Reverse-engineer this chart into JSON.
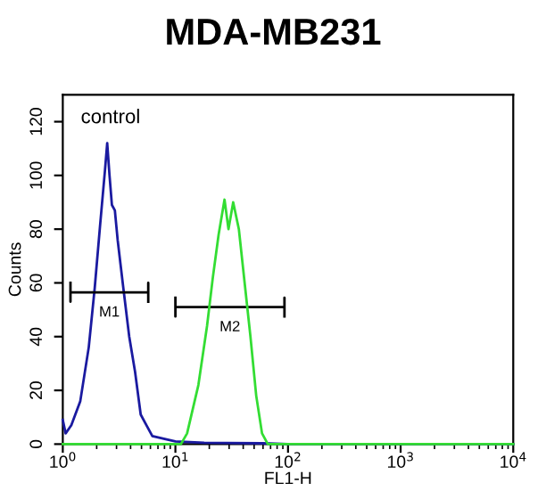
{
  "chart_data": {
    "type": "line",
    "title": "MDA-MB231",
    "xlabel": "FL1-H",
    "ylabel": "Counts",
    "log": "x",
    "xlim": [
      1,
      10000
    ],
    "xticks": [
      {
        "value": 1,
        "label": "10$^{0}$"
      },
      {
        "value": 10,
        "label": "10$^{1}$"
      },
      {
        "value": 100,
        "label": "10$^{2}$"
      },
      {
        "value": 1000,
        "label": "10$^{3}$"
      },
      {
        "value": 10000,
        "label": "10$^{4}$"
      }
    ],
    "ylim": [
      0,
      130
    ],
    "yticks": [
      0,
      20,
      40,
      60,
      80,
      100,
      120
    ],
    "grid": false,
    "legend": false,
    "series": [
      {
        "color": "#1a1aa0",
        "x": [
          1.0,
          1.06,
          1.19,
          1.43,
          1.7,
          1.92,
          2.15,
          2.37,
          2.48,
          2.6,
          2.73,
          2.9,
          3.07,
          3.45,
          3.89,
          4.38,
          4.92,
          5.54,
          6.24,
          7.89,
          10,
          18,
          60,
          100,
          10000
        ],
        "values": [
          9,
          4,
          7,
          16,
          36,
          58,
          82,
          102,
          112,
          100,
          89,
          87,
          76,
          58,
          40,
          27,
          11,
          7,
          3,
          2,
          1,
          0.5,
          0.3,
          0,
          0
        ]
      },
      {
        "color": "#000000",
        "x": [
          1.17,
          1.17,
          1.17,
          5.74,
          5.74,
          5.74
        ],
        "values": [
          60,
          53,
          56.5,
          56.5,
          60,
          53
        ]
      },
      {
        "color": "#000000",
        "x": [
          10,
          10,
          10,
          93,
          93,
          93
        ],
        "values": [
          54.5,
          47.5,
          51,
          51,
          54.5,
          47.5
        ]
      },
      {
        "color": "#33dd33",
        "x": [
          1,
          5,
          11.2,
          12.7,
          16.0,
          19.1,
          21.5,
          24.2,
          27.3,
          29.6,
          32.6,
          36.6,
          41.2,
          46.4,
          52.2,
          58.8,
          66.2,
          100,
          1000,
          10000
        ],
        "values": [
          0,
          0,
          0,
          4,
          22,
          44,
          62,
          78,
          91,
          80,
          90,
          80,
          60,
          40,
          18,
          4,
          0,
          0,
          0,
          0
        ]
      }
    ],
    "annotations": [
      "control",
      "M1",
      "M2"
    ]
  }
}
